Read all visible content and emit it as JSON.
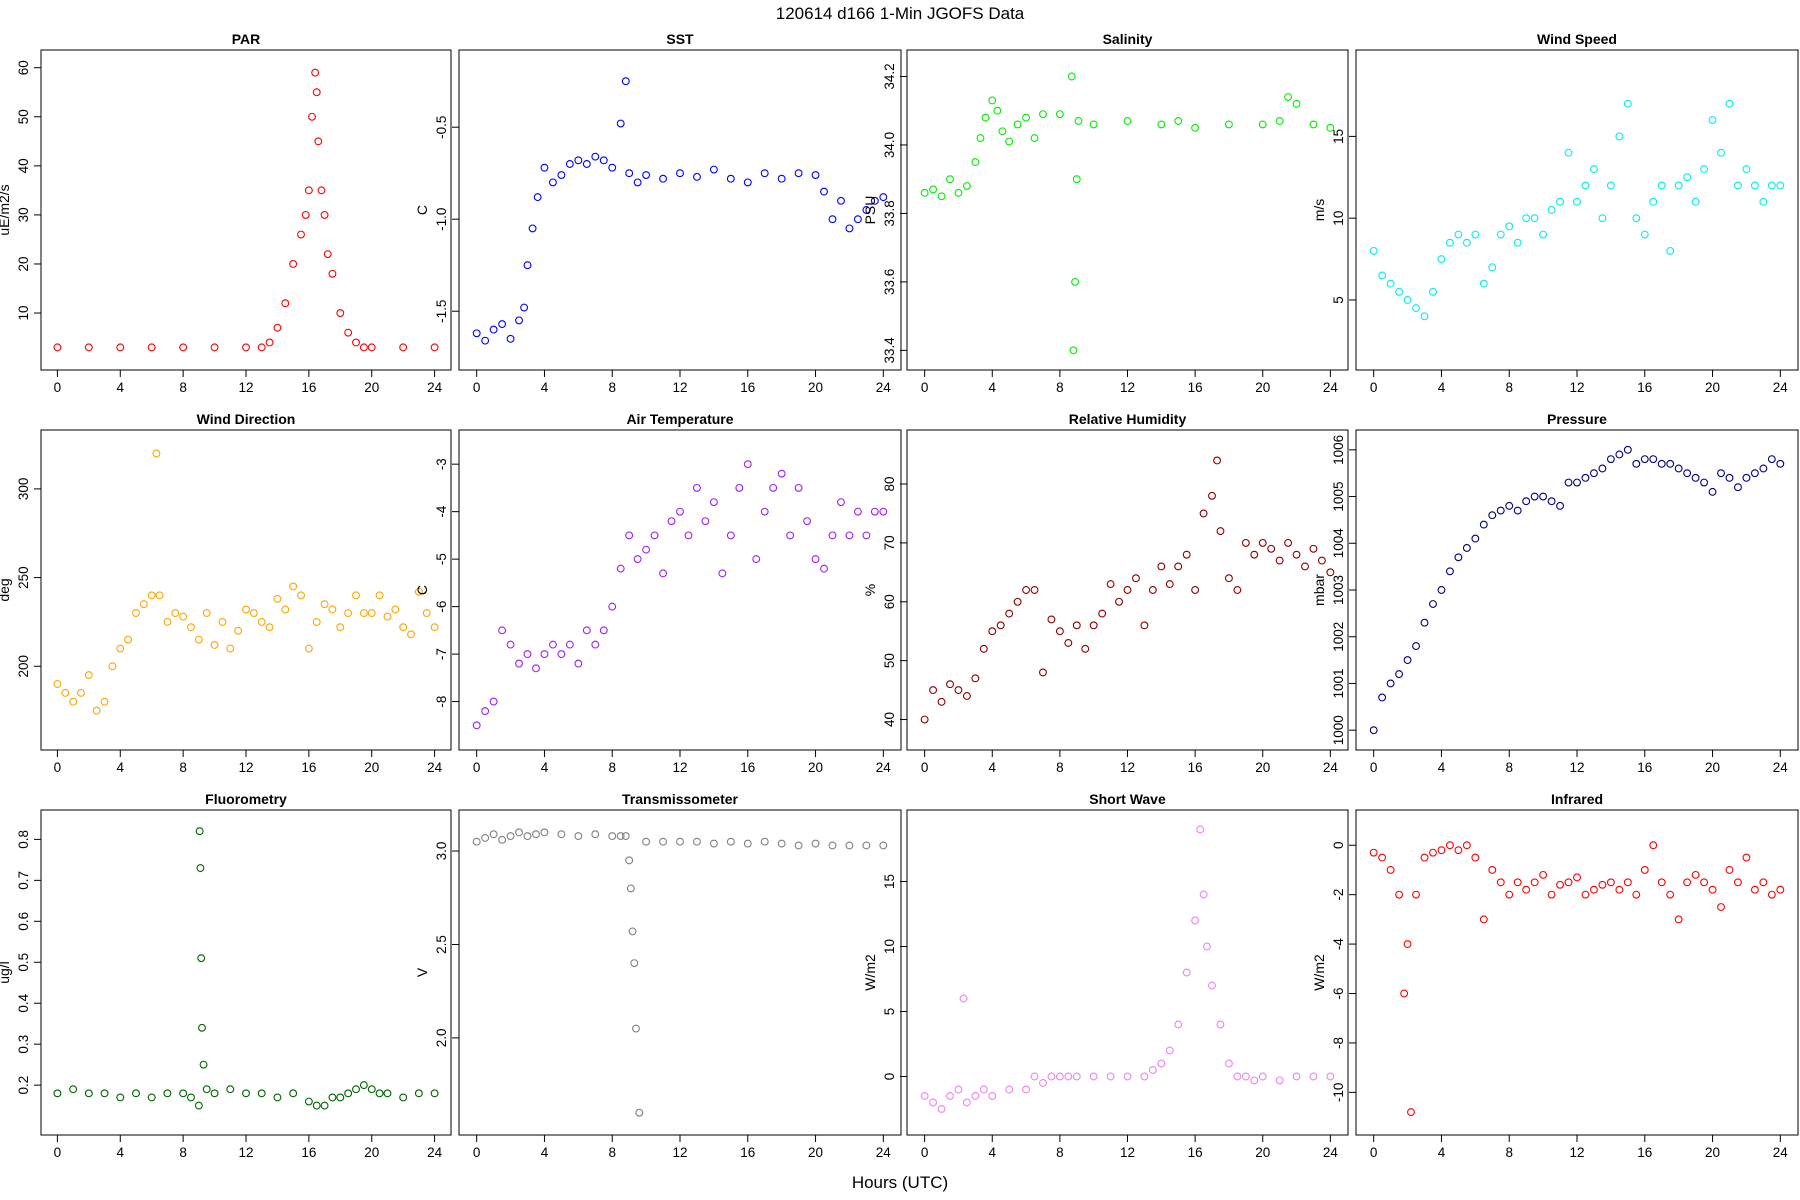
{
  "figure": {
    "title": "120614   d166   1-Min  JGOFS Data",
    "xlabel": "Hours (UTC)"
  },
  "chart_data": [
    {
      "type": "scatter",
      "title": "PAR",
      "ylabel": "uE/m2/s",
      "color": "#ff0000",
      "xlim": [
        0,
        24
      ],
      "ylim": [
        1,
        61
      ],
      "xticks": [
        "0",
        "4",
        "8",
        "12",
        "16",
        "20",
        "24"
      ],
      "yticks": [
        "10",
        "20",
        "30",
        "40",
        "50",
        "60"
      ],
      "x": [
        0,
        2,
        4,
        6,
        8,
        10,
        12,
        13,
        13.5,
        14,
        14.5,
        15,
        15.5,
        15.8,
        16,
        16.2,
        16.4,
        16.5,
        16.6,
        16.8,
        17,
        17.2,
        17.5,
        18,
        18.5,
        19,
        19.5,
        20,
        22,
        24
      ],
      "y": [
        3,
        3,
        3,
        3,
        3,
        3,
        3,
        3,
        4,
        7,
        12,
        20,
        26,
        30,
        35,
        50,
        59,
        55,
        45,
        35,
        30,
        22,
        18,
        10,
        6,
        4,
        3,
        3,
        3,
        3
      ]
    },
    {
      "type": "scatter",
      "title": "SST",
      "ylabel": "C",
      "color": "#0000ff",
      "xlim": [
        0,
        24
      ],
      "ylim": [
        -1.75,
        -0.15
      ],
      "xticks": [
        "0",
        "4",
        "8",
        "12",
        "16",
        "20",
        "24"
      ],
      "yticks": [
        "-1.5",
        "-1.0",
        "-0.5"
      ],
      "x": [
        0,
        0.5,
        1,
        1.5,
        2,
        2.5,
        2.8,
        3,
        3.3,
        3.6,
        4,
        4.5,
        5,
        5.5,
        6,
        6.5,
        7,
        7.5,
        8,
        8.5,
        8.8,
        9,
        9.5,
        10,
        11,
        12,
        13,
        14,
        15,
        16,
        17,
        18,
        19,
        20,
        20.5,
        21,
        21.5,
        22,
        22.5,
        23,
        23.5,
        24
      ],
      "y": [
        -1.62,
        -1.66,
        -1.6,
        -1.57,
        -1.65,
        -1.55,
        -1.48,
        -1.25,
        -1.05,
        -0.88,
        -0.72,
        -0.8,
        -0.76,
        -0.7,
        -0.68,
        -0.7,
        -0.66,
        -0.68,
        -0.72,
        -0.48,
        -0.25,
        -0.75,
        -0.8,
        -0.76,
        -0.78,
        -0.75,
        -0.77,
        -0.73,
        -0.78,
        -0.8,
        -0.75,
        -0.78,
        -0.75,
        -0.76,
        -0.85,
        -1.0,
        -0.9,
        -1.05,
        -1.0,
        -0.95,
        -0.9,
        -0.88
      ]
    },
    {
      "type": "scatter",
      "title": "Salinity",
      "ylabel": "PSU",
      "color": "#00ee00",
      "xlim": [
        0,
        24
      ],
      "ylim": [
        33.38,
        34.24
      ],
      "xticks": [
        "0",
        "4",
        "8",
        "12",
        "16",
        "20",
        "24"
      ],
      "yticks": [
        "33.4",
        "33.6",
        "33.8",
        "34.0",
        "34.2"
      ],
      "x": [
        0,
        0.5,
        1,
        1.5,
        2,
        2.5,
        3,
        3.3,
        3.6,
        4,
        4.3,
        4.6,
        5,
        5.5,
        6,
        6.5,
        7,
        8,
        8.7,
        8.8,
        8.9,
        9,
        9.1,
        10,
        12,
        14,
        15,
        16,
        18,
        20,
        21,
        21.5,
        22,
        23,
        24
      ],
      "y": [
        33.86,
        33.87,
        33.85,
        33.9,
        33.86,
        33.88,
        33.95,
        34.02,
        34.08,
        34.13,
        34.1,
        34.04,
        34.01,
        34.06,
        34.08,
        34.02,
        34.09,
        34.09,
        34.2,
        33.4,
        33.6,
        33.9,
        34.07,
        34.06,
        34.07,
        34.06,
        34.07,
        34.05,
        34.06,
        34.06,
        34.07,
        34.14,
        34.12,
        34.06,
        34.05
      ]
    },
    {
      "type": "scatter",
      "title": "Wind Speed",
      "ylabel": "m/s",
      "color": "#00eeee",
      "xlim": [
        0,
        24
      ],
      "ylim": [
        1.5,
        19.5
      ],
      "xticks": [
        "0",
        "4",
        "8",
        "12",
        "16",
        "20",
        "24"
      ],
      "yticks": [
        "5",
        "10",
        "15"
      ],
      "x": [
        0,
        0.5,
        1,
        1.5,
        2,
        2.5,
        3,
        3.5,
        4,
        4.5,
        5,
        5.5,
        6,
        6.5,
        7,
        7.5,
        8,
        8.5,
        9,
        9.5,
        10,
        10.5,
        11,
        11.5,
        12,
        12.5,
        13,
        13.5,
        14,
        14.5,
        15,
        15.5,
        16,
        16.5,
        17,
        17.5,
        18,
        18.5,
        19,
        19.5,
        20,
        20.5,
        21,
        21.5,
        22,
        22.5,
        23,
        23.5,
        24
      ],
      "y": [
        8,
        6.5,
        6,
        5.5,
        5,
        4.5,
        4,
        5.5,
        7.5,
        8.5,
        9,
        8.5,
        9,
        6,
        7,
        9,
        9.5,
        8.5,
        10,
        10,
        9,
        10.5,
        11,
        14,
        11,
        12,
        13,
        10,
        12,
        15,
        17,
        10,
        9,
        11,
        12,
        8,
        12,
        12.5,
        11,
        13,
        16,
        14,
        17,
        12,
        13,
        12,
        11,
        12,
        12
      ]
    },
    {
      "type": "scatter",
      "title": "Wind Direction",
      "ylabel": "deg",
      "color": "#ffa500",
      "xlim": [
        0,
        24
      ],
      "ylim": [
        160,
        326
      ],
      "xticks": [
        "0",
        "4",
        "8",
        "12",
        "16",
        "20",
        "24"
      ],
      "yticks": [
        "200",
        "250",
        "300"
      ],
      "x": [
        0,
        0.5,
        1,
        1.5,
        2,
        2.5,
        3,
        3.5,
        4,
        4.5,
        5,
        5.5,
        6,
        6.3,
        6.5,
        7,
        7.5,
        8,
        8.5,
        9,
        9.5,
        10,
        10.5,
        11,
        11.5,
        12,
        12.5,
        13,
        13.5,
        14,
        14.5,
        15,
        15.5,
        16,
        16.5,
        17,
        17.5,
        18,
        18.5,
        19,
        19.5,
        20,
        20.5,
        21,
        21.5,
        22,
        22.5,
        23,
        23.5,
        24
      ],
      "y": [
        190,
        185,
        180,
        185,
        195,
        175,
        180,
        200,
        210,
        215,
        230,
        235,
        240,
        320,
        240,
        225,
        230,
        228,
        222,
        215,
        230,
        212,
        225,
        210,
        220,
        232,
        230,
        225,
        222,
        238,
        232,
        245,
        240,
        210,
        225,
        235,
        232,
        222,
        230,
        240,
        230,
        230,
        240,
        228,
        232,
        222,
        218,
        242,
        230,
        222
      ]
    },
    {
      "type": "scatter",
      "title": "Air Temperature",
      "ylabel": "C",
      "color": "#a020f0",
      "xlim": [
        0,
        24
      ],
      "ylim": [
        -8.75,
        -2.55
      ],
      "xticks": [
        "0",
        "4",
        "8",
        "12",
        "16",
        "20",
        "24"
      ],
      "yticks": [
        "-8",
        "-7",
        "-6",
        "-5",
        "-4",
        "-3"
      ],
      "x": [
        0,
        0.5,
        1,
        1.5,
        2,
        2.5,
        3,
        3.5,
        4,
        4.5,
        5,
        5.5,
        6,
        6.5,
        7,
        7.5,
        8,
        8.5,
        9,
        9.5,
        10,
        10.5,
        11,
        11.5,
        12,
        12.5,
        13,
        13.5,
        14,
        14.5,
        15,
        15.5,
        16,
        16.5,
        17,
        17.5,
        18,
        18.5,
        19,
        19.5,
        20,
        20.5,
        21,
        21.5,
        22,
        22.5,
        23,
        23.5,
        24
      ],
      "y": [
        -8.5,
        -8.2,
        -8.0,
        -6.5,
        -6.8,
        -7.2,
        -7.0,
        -7.3,
        -7.0,
        -6.8,
        -7.0,
        -6.8,
        -7.2,
        -6.5,
        -6.8,
        -6.5,
        -6.0,
        -5.2,
        -4.5,
        -5.0,
        -4.8,
        -4.5,
        -5.3,
        -4.2,
        -4.0,
        -4.5,
        -3.5,
        -4.2,
        -3.8,
        -5.3,
        -4.5,
        -3.5,
        -3.0,
        -5.0,
        -4.0,
        -3.5,
        -3.2,
        -4.5,
        -3.5,
        -4.2,
        -5.0,
        -5.2,
        -4.5,
        -3.8,
        -4.5,
        -4.0,
        -4.5,
        -4.0,
        -4.0
      ]
    },
    {
      "type": "scatter",
      "title": "Relative Humidity",
      "ylabel": "%",
      "color": "#8b0000",
      "xlim": [
        0,
        24
      ],
      "ylim": [
        37,
        87
      ],
      "xticks": [
        "0",
        "4",
        "8",
        "12",
        "16",
        "20",
        "24"
      ],
      "yticks": [
        "40",
        "50",
        "60",
        "70",
        "80"
      ],
      "x": [
        0,
        0.5,
        1,
        1.5,
        2,
        2.5,
        3,
        3.5,
        4,
        4.5,
        5,
        5.5,
        6,
        6.5,
        7,
        7.5,
        8,
        8.5,
        9,
        9.5,
        10,
        10.5,
        11,
        11.5,
        12,
        12.5,
        13,
        13.5,
        14,
        14.5,
        15,
        15.5,
        16,
        16.5,
        17,
        17.3,
        17.5,
        18,
        18.5,
        19,
        19.5,
        20,
        20.5,
        21,
        21.5,
        22,
        22.5,
        23,
        23.5,
        24
      ],
      "y": [
        40,
        45,
        43,
        46,
        45,
        44,
        47,
        52,
        55,
        56,
        58,
        60,
        62,
        62,
        48,
        57,
        55,
        53,
        56,
        52,
        56,
        58,
        63,
        60,
        62,
        64,
        56,
        62,
        66,
        63,
        66,
        68,
        62,
        75,
        78,
        84,
        72,
        64,
        62,
        70,
        68,
        70,
        69,
        67,
        70,
        68,
        66,
        69,
        67,
        65
      ]
    },
    {
      "type": "scatter",
      "title": "Pressure",
      "ylabel": "mbar",
      "color": "#000080",
      "xlim": [
        0,
        24
      ],
      "ylim": [
        999.85,
        1006.15
      ],
      "xticks": [
        "0",
        "4",
        "8",
        "12",
        "16",
        "20",
        "24"
      ],
      "yticks": [
        "1000",
        "1001",
        "1002",
        "1003",
        "1004",
        "1005",
        "1006"
      ],
      "x": [
        0,
        0.5,
        1,
        1.5,
        2,
        2.5,
        3,
        3.5,
        4,
        4.5,
        5,
        5.5,
        6,
        6.5,
        7,
        7.5,
        8,
        8.5,
        9,
        9.5,
        10,
        10.5,
        11,
        11.5,
        12,
        12.5,
        13,
        13.5,
        14,
        14.5,
        15,
        15.5,
        16,
        16.5,
        17,
        17.5,
        18,
        18.5,
        19,
        19.5,
        20,
        20.5,
        21,
        21.5,
        22,
        22.5,
        23,
        23.5,
        24
      ],
      "y": [
        1000,
        1000.7,
        1001,
        1001.2,
        1001.5,
        1001.8,
        1002.3,
        1002.7,
        1003.0,
        1003.4,
        1003.7,
        1003.9,
        1004.1,
        1004.4,
        1004.6,
        1004.7,
        1004.8,
        1004.7,
        1004.9,
        1005.0,
        1005.0,
        1004.9,
        1004.8,
        1005.3,
        1005.3,
        1005.4,
        1005.5,
        1005.6,
        1005.8,
        1005.9,
        1006.0,
        1005.7,
        1005.8,
        1005.8,
        1005.7,
        1005.7,
        1005.6,
        1005.5,
        1005.4,
        1005.3,
        1005.1,
        1005.5,
        1005.4,
        1005.2,
        1005.4,
        1005.5,
        1005.6,
        1005.8,
        1005.7
      ]
    },
    {
      "type": "scatter",
      "title": "Fluorometry",
      "ylabel": "ug/l",
      "color": "#006400",
      "xlim": [
        0,
        24
      ],
      "ylim": [
        0.11,
        0.84
      ],
      "xticks": [
        "0",
        "4",
        "8",
        "12",
        "16",
        "20",
        "24"
      ],
      "yticks": [
        "0.2",
        "0.3",
        "0.4",
        "0.5",
        "0.6",
        "0.7",
        "0.8"
      ],
      "x": [
        0,
        1,
        2,
        3,
        4,
        5,
        6,
        7,
        8,
        8.5,
        9,
        9.05,
        9.1,
        9.15,
        9.2,
        9.3,
        9.5,
        10,
        11,
        12,
        13,
        14,
        15,
        16,
        16.5,
        17,
        17.5,
        18,
        18.5,
        19,
        19.5,
        20,
        20.5,
        21,
        22,
        23,
        24
      ],
      "y": [
        0.18,
        0.19,
        0.18,
        0.18,
        0.17,
        0.18,
        0.17,
        0.18,
        0.18,
        0.17,
        0.15,
        0.82,
        0.73,
        0.51,
        0.34,
        0.25,
        0.19,
        0.18,
        0.19,
        0.18,
        0.18,
        0.17,
        0.18,
        0.16,
        0.15,
        0.15,
        0.17,
        0.17,
        0.18,
        0.19,
        0.2,
        0.19,
        0.18,
        0.18,
        0.17,
        0.18,
        0.18
      ]
    },
    {
      "type": "scatter",
      "title": "Transmissometer",
      "ylabel": "V",
      "color": "#808080",
      "xlim": [
        0,
        24
      ],
      "ylim": [
        1.55,
        3.15
      ],
      "xticks": [
        "0",
        "4",
        "8",
        "12",
        "16",
        "20",
        "24"
      ],
      "yticks": [
        "2.0",
        "2.5",
        "3.0"
      ],
      "x": [
        0,
        0.5,
        1,
        1.5,
        2,
        2.5,
        3,
        3.5,
        4,
        5,
        6,
        7,
        8,
        8.5,
        8.8,
        9,
        9.1,
        9.2,
        9.3,
        9.4,
        9.6,
        10,
        11,
        12,
        13,
        14,
        15,
        16,
        17,
        18,
        19,
        20,
        21,
        22,
        23,
        24
      ],
      "y": [
        3.05,
        3.07,
        3.09,
        3.06,
        3.08,
        3.1,
        3.08,
        3.09,
        3.1,
        3.09,
        3.08,
        3.09,
        3.08,
        3.08,
        3.08,
        2.95,
        2.8,
        2.57,
        2.4,
        2.05,
        1.6,
        3.05,
        3.05,
        3.05,
        3.05,
        3.04,
        3.05,
        3.04,
        3.05,
        3.04,
        3.03,
        3.04,
        3.03,
        3.03,
        3.03,
        3.03
      ]
    },
    {
      "type": "scatter",
      "title": "Short Wave",
      "ylabel": "W/m2",
      "color": "#ee82ee",
      "xlim": [
        0,
        24
      ],
      "ylim": [
        -3.5,
        19.5
      ],
      "xticks": [
        "0",
        "4",
        "8",
        "12",
        "16",
        "20",
        "24"
      ],
      "yticks": [
        "0",
        "5",
        "10",
        "15"
      ],
      "x": [
        0,
        0.5,
        1,
        1.5,
        2,
        2.3,
        2.5,
        3,
        3.5,
        4,
        5,
        6,
        6.5,
        7,
        7.5,
        8,
        8.5,
        9,
        10,
        11,
        12,
        13,
        13.5,
        14,
        14.5,
        15,
        15.5,
        16,
        16.3,
        16.5,
        16.7,
        17,
        17.5,
        18,
        18.5,
        19,
        19.5,
        20,
        21,
        22,
        23,
        24
      ],
      "y": [
        -1.5,
        -2,
        -2.5,
        -1.5,
        -1,
        6,
        -2,
        -1.5,
        -1,
        -1.5,
        -1,
        -1,
        0,
        -0.5,
        0,
        0,
        0,
        0,
        0,
        0,
        0,
        0,
        0.5,
        1,
        2,
        4,
        8,
        12,
        19,
        14,
        10,
        7,
        4,
        1,
        0,
        0,
        -0.3,
        0,
        -0.3,
        0,
        0,
        0
      ]
    },
    {
      "type": "scatter",
      "title": "Infrared",
      "ylabel": "W/m2",
      "color": "#ff0000",
      "xlim": [
        0,
        24
      ],
      "ylim": [
        -11.2,
        0.9
      ],
      "xticks": [
        "0",
        "4",
        "8",
        "12",
        "16",
        "20",
        "24"
      ],
      "yticks": [
        "-10",
        "-8",
        "-6",
        "-4",
        "-2",
        "0"
      ],
      "x": [
        0,
        0.5,
        1,
        1.5,
        1.8,
        2,
        2.2,
        2.5,
        3,
        3.5,
        4,
        4.5,
        5,
        5.5,
        6,
        6.5,
        7,
        7.5,
        8,
        8.5,
        9,
        9.5,
        10,
        10.5,
        11,
        11.5,
        12,
        12.5,
        13,
        13.5,
        14,
        14.5,
        15,
        15.5,
        16,
        16.5,
        17,
        17.5,
        18,
        18.5,
        19,
        19.5,
        20,
        20.5,
        21,
        21.5,
        22,
        22.5,
        23,
        23.5,
        24
      ],
      "y": [
        -0.3,
        -0.5,
        -1,
        -2,
        -6,
        -4,
        -10.8,
        -2,
        -0.5,
        -0.3,
        -0.2,
        0,
        -0.2,
        0,
        -0.5,
        -3,
        -1,
        -1.5,
        -2,
        -1.5,
        -1.8,
        -1.5,
        -1.2,
        -2,
        -1.6,
        -1.5,
        -1.3,
        -2,
        -1.8,
        -1.6,
        -1.5,
        -1.8,
        -1.5,
        -2,
        -1,
        0,
        -1.5,
        -2,
        -3,
        -1.5,
        -1.2,
        -1.5,
        -1.8,
        -2.5,
        -1,
        -1.5,
        -0.5,
        -1.8,
        -1.5,
        -2,
        -1.8
      ]
    }
  ]
}
